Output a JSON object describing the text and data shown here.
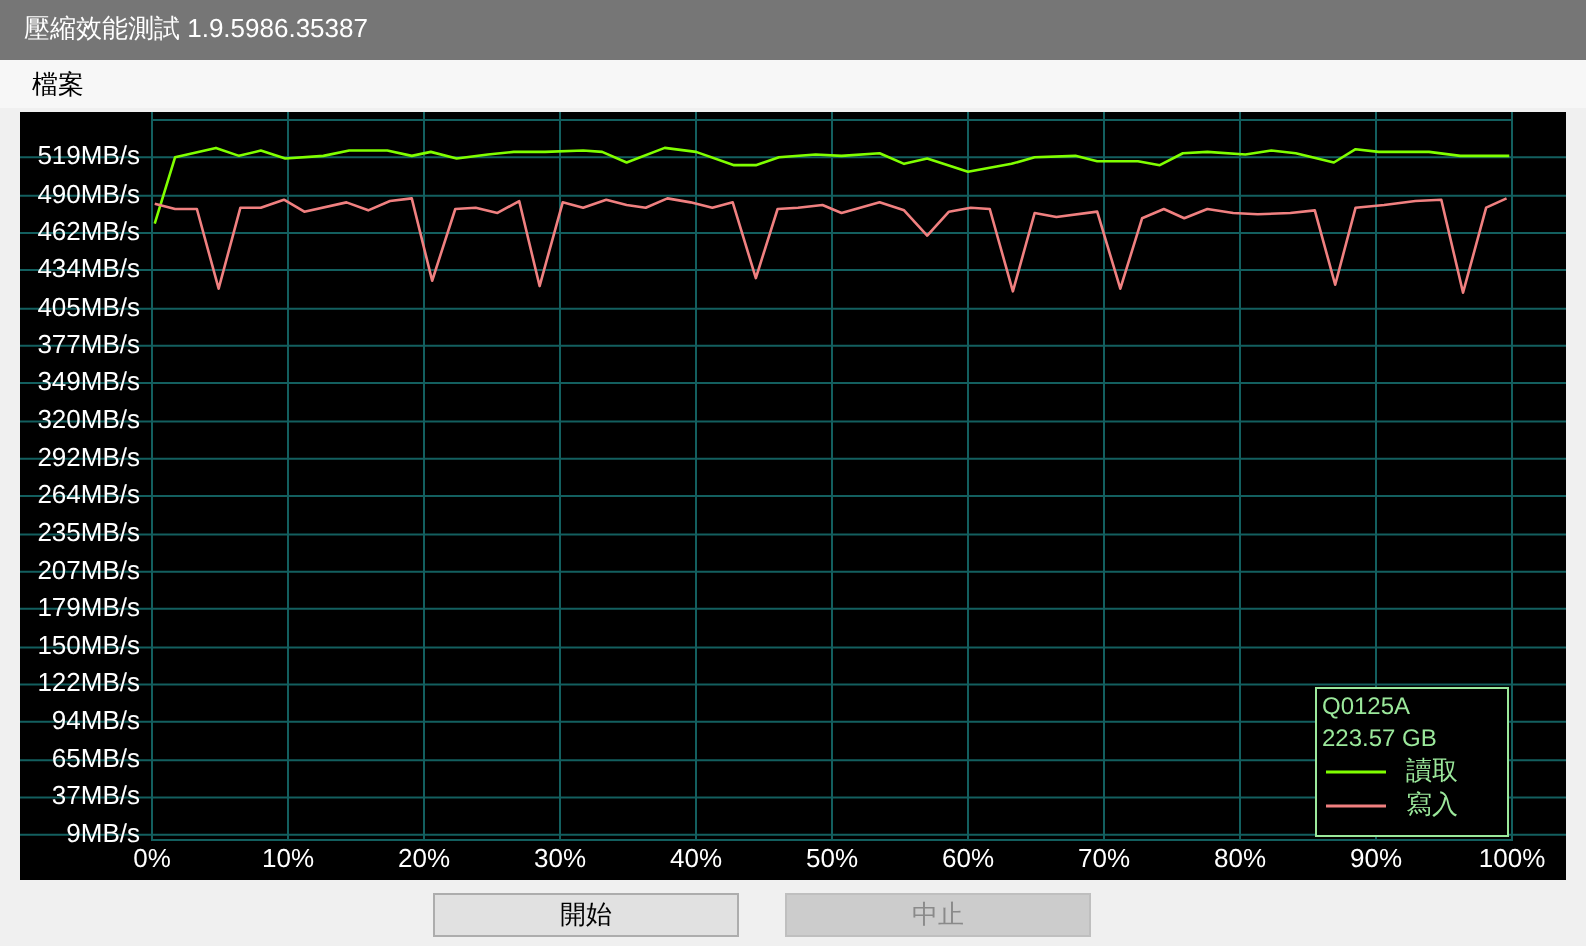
{
  "chart_data": {
    "type": "line",
    "title": "壓縮效能測試 1.9.5986.35387",
    "annotations": [
      "檔案",
      "開始",
      "中止",
      "Q0125A",
      "223.57 GB"
    ],
    "xlim": [
      0,
      100
    ],
    "xticks": [
      {
        "value": 0,
        "label": "0%"
      },
      {
        "value": 10,
        "label": "10%"
      },
      {
        "value": 20,
        "label": "20%"
      },
      {
        "value": 30,
        "label": "30%"
      },
      {
        "value": 40,
        "label": "40%"
      },
      {
        "value": 50,
        "label": "50%"
      },
      {
        "value": 60,
        "label": "60%"
      },
      {
        "value": 70,
        "label": "70%"
      },
      {
        "value": 80,
        "label": "80%"
      },
      {
        "value": 90,
        "label": "90%"
      },
      {
        "value": 100,
        "label": "100%"
      }
    ],
    "ylim": [
      5,
      547
    ],
    "yticks": [
      {
        "value": 9,
        "label": "9MB/s"
      },
      {
        "value": 37,
        "label": "37MB/s"
      },
      {
        "value": 65,
        "label": "65MB/s"
      },
      {
        "value": 94,
        "label": "94MB/s"
      },
      {
        "value": 122,
        "label": "122MB/s"
      },
      {
        "value": 150,
        "label": "150MB/s"
      },
      {
        "value": 179,
        "label": "179MB/s"
      },
      {
        "value": 207,
        "label": "207MB/s"
      },
      {
        "value": 235,
        "label": "235MB/s"
      },
      {
        "value": 264,
        "label": "264MB/s"
      },
      {
        "value": 292,
        "label": "292MB/s"
      },
      {
        "value": 320,
        "label": "320MB/s"
      },
      {
        "value": 349,
        "label": "349MB/s"
      },
      {
        "value": 377,
        "label": "377MB/s"
      },
      {
        "value": 405,
        "label": "405MB/s"
      },
      {
        "value": 434,
        "label": "434MB/s"
      },
      {
        "value": 462,
        "label": "462MB/s"
      },
      {
        "value": 490,
        "label": "490MB/s"
      },
      {
        "value": 519,
        "label": "519MB/s"
      }
    ],
    "grid": true,
    "legend": "bottom right",
    "line_style": "solid",
    "series": [
      {
        "name": "讀取",
        "color": "#80ff00",
        "x": [
          0.2,
          1.7,
          4.7,
          6.4,
          8.0,
          9.8,
          12.6,
          14.5,
          17.3,
          19.1,
          20.5,
          22.4,
          24.7,
          26.6,
          28.9,
          31.7,
          33.1,
          34.9,
          37.7,
          40.0,
          42.8,
          44.4,
          46.1,
          48.8,
          50.7,
          53.5,
          55.3,
          57.0,
          60.0,
          63.2,
          64.9,
          67.9,
          69.5,
          72.5,
          74.1,
          75.8,
          77.6,
          80.4,
          82.3,
          84.1,
          86.9,
          88.5,
          90.2,
          93.9,
          96.2,
          98.1,
          99.8
        ],
        "values": [
          469,
          519,
          526,
          520,
          524,
          518,
          520,
          524,
          524,
          520,
          523,
          518,
          521,
          523,
          523,
          524,
          523,
          515,
          526,
          523,
          513,
          513,
          519,
          521,
          520,
          522,
          514,
          518,
          508,
          514,
          519,
          520,
          516,
          516,
          513,
          522,
          523,
          521,
          524,
          522,
          515,
          525,
          523,
          523,
          520,
          520,
          520
        ]
      },
      {
        "name": "寫入",
        "color": "#f08080",
        "x": [
          0.2,
          1.7,
          3.3,
          4.9,
          6.5,
          8.0,
          9.7,
          11.2,
          14.3,
          15.9,
          17.5,
          19.1,
          20.6,
          22.3,
          23.8,
          25.4,
          27.0,
          28.5,
          30.2,
          31.7,
          33.4,
          34.9,
          36.3,
          37.9,
          39.6,
          41.2,
          42.7,
          44.4,
          46.0,
          47.5,
          49.3,
          50.7,
          53.5,
          55.3,
          57.0,
          58.6,
          60.2,
          61.6,
          63.3,
          64.9,
          66.5,
          69.5,
          71.2,
          72.8,
          74.4,
          75.9,
          77.6,
          79.5,
          81.3,
          83.7,
          85.5,
          87.0,
          88.5,
          90.6,
          92.9,
          94.8,
          96.4,
          98.1,
          99.6
        ],
        "values": [
          484,
          480,
          480,
          420,
          481,
          481,
          487,
          478,
          485,
          479,
          486,
          488,
          426,
          480,
          481,
          477,
          486,
          422,
          485,
          481,
          487,
          483,
          481,
          488,
          485,
          481,
          485,
          428,
          480,
          481,
          483,
          477,
          485,
          479,
          460,
          478,
          481,
          480,
          418,
          477,
          474,
          478,
          420,
          473,
          480,
          473,
          480,
          477,
          476,
          477,
          479,
          423,
          481,
          483,
          486,
          487,
          417,
          481,
          488
        ]
      }
    ]
  }
}
